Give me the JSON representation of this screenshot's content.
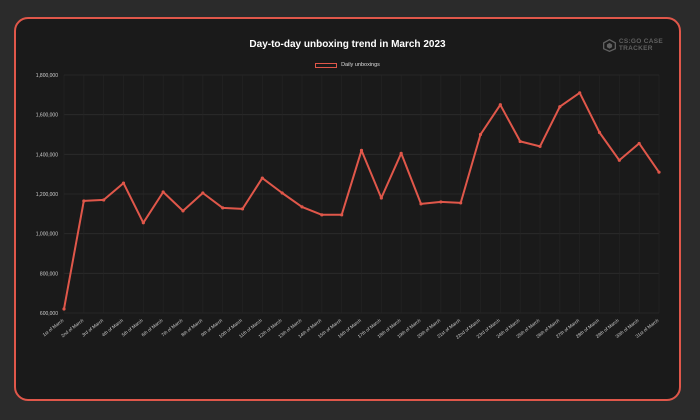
{
  "chart_data": {
    "type": "line",
    "title": "Day-to-day unboxing trend in March 2023",
    "xlabel": "",
    "ylabel": "",
    "ylim": [
      600000,
      1800000
    ],
    "yticks": [
      "600,000",
      "800,000",
      "1,000,000",
      "1,200,000",
      "1,400,000",
      "1,600,000",
      "1,800,000"
    ],
    "legend_position": "top",
    "grid": true,
    "categories": [
      "1st of March",
      "2nd of March",
      "3rd of March",
      "4th of March",
      "5th of March",
      "6th of March",
      "7th of March",
      "8th of March",
      "9th of March",
      "10th of March",
      "11th of March",
      "12th of March",
      "13th of March",
      "14th of March",
      "15th of March",
      "16th of March",
      "17th of March",
      "18th of March",
      "19th of March",
      "20th of March",
      "21st of March",
      "22nd of March",
      "23rd of March",
      "24th of March",
      "25th of March",
      "26th of March",
      "27th of March",
      "28th of March",
      "29th of March",
      "30th of March",
      "31st of March"
    ],
    "series": [
      {
        "name": "Daily unboxings",
        "color": "#e0574a",
        "values": [
          620000,
          1165000,
          1170000,
          1255000,
          1055000,
          1210000,
          1115000,
          1205000,
          1130000,
          1125000,
          1280000,
          1205000,
          1135000,
          1095000,
          1095000,
          1420000,
          1180000,
          1405000,
          1150000,
          1160000,
          1155000,
          1500000,
          1650000,
          1465000,
          1440000,
          1640000,
          1710000,
          1510000,
          1370000,
          1455000,
          1310000
        ]
      }
    ]
  },
  "logo": {
    "line1": "CS:GO CASE",
    "line2": "TRACKER"
  },
  "colors": {
    "background": "#2b2b2b",
    "card": "#1a1a1a",
    "accent": "#e0574a",
    "text": "#ffffff"
  }
}
